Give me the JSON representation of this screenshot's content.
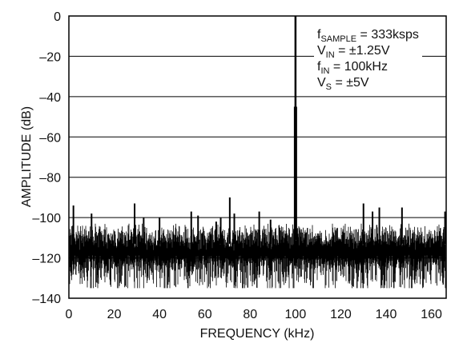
{
  "chart_data": {
    "type": "line",
    "xlabel": "FREQUENCY (kHz)",
    "ylabel": "AMPLITUDE (dB)",
    "xlim": [
      0,
      166.5
    ],
    "ylim": [
      -140,
      0
    ],
    "x_ticks": [
      0,
      20,
      40,
      60,
      80,
      100,
      120,
      140,
      160
    ],
    "y_ticks": [
      0,
      -20,
      -40,
      -60,
      -80,
      -100,
      -120,
      -140
    ],
    "x_tick_labels": [
      "0",
      "20",
      "40",
      "60",
      "80",
      "100",
      "120",
      "140",
      "160"
    ],
    "y_tick_labels": [
      "0",
      "–20",
      "–40",
      "–60",
      "–80",
      "–100",
      "–120",
      "–140"
    ],
    "grid": "horizontal",
    "noise_floor": {
      "mean": -117,
      "low": -135,
      "high": -103
    },
    "fundamental": {
      "x": 100,
      "y": 0
    },
    "spurs": [
      {
        "x": 2,
        "y": -94
      },
      {
        "x": 10,
        "y": -98
      },
      {
        "x": 29,
        "y": -93
      },
      {
        "x": 33,
        "y": -100
      },
      {
        "x": 40,
        "y": -100
      },
      {
        "x": 54,
        "y": -97
      },
      {
        "x": 57,
        "y": -99
      },
      {
        "x": 65,
        "y": -102
      },
      {
        "x": 67,
        "y": -100
      },
      {
        "x": 71,
        "y": -90
      },
      {
        "x": 73,
        "y": -98
      },
      {
        "x": 84,
        "y": -97
      },
      {
        "x": 89,
        "y": -101
      },
      {
        "x": 93,
        "y": -105
      },
      {
        "x": 130,
        "y": -93
      },
      {
        "x": 134,
        "y": -97
      },
      {
        "x": 137,
        "y": -95
      },
      {
        "x": 147,
        "y": -95
      },
      {
        "x": 166,
        "y": -97
      }
    ],
    "annotations": [
      {
        "main": "f",
        "sub": "SAMPLE",
        "rest": " = 333ksps"
      },
      {
        "main": "V",
        "sub": "IN",
        "rest": " = ±1.25V"
      },
      {
        "main": "f",
        "sub": "IN",
        "rest": " = 100kHz"
      },
      {
        "main": "V",
        "sub": "S",
        "rest": " = ±5V"
      }
    ]
  }
}
